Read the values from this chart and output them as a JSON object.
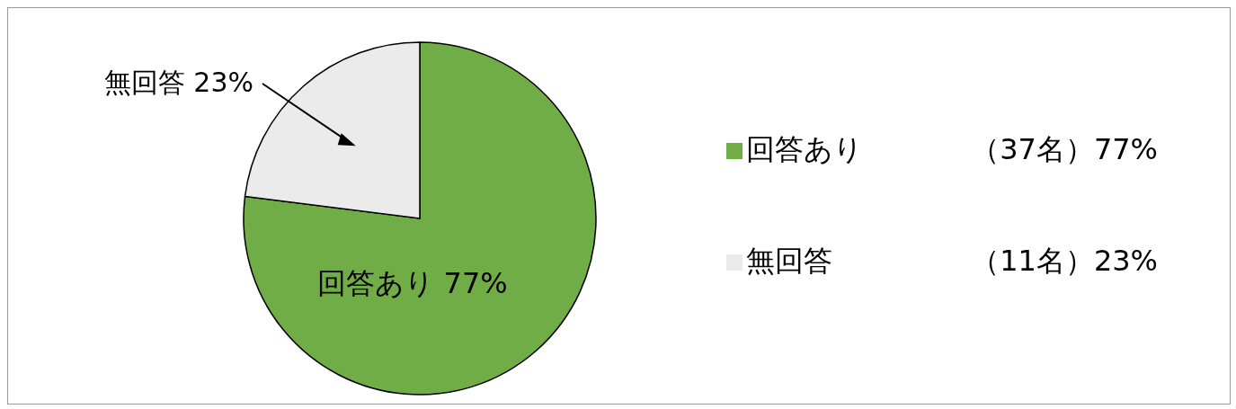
{
  "chart_data": {
    "type": "pie",
    "categories": [
      "回答あり",
      "無回答"
    ],
    "values": [
      77,
      23
    ],
    "colors": [
      "#70ad47",
      "#ebebeb"
    ],
    "value_labels": [
      "回答あり 77%",
      "無回答 23%"
    ],
    "annotations": [
      "（37名）77%",
      "（11名）23%"
    ],
    "legend": "right"
  }
}
